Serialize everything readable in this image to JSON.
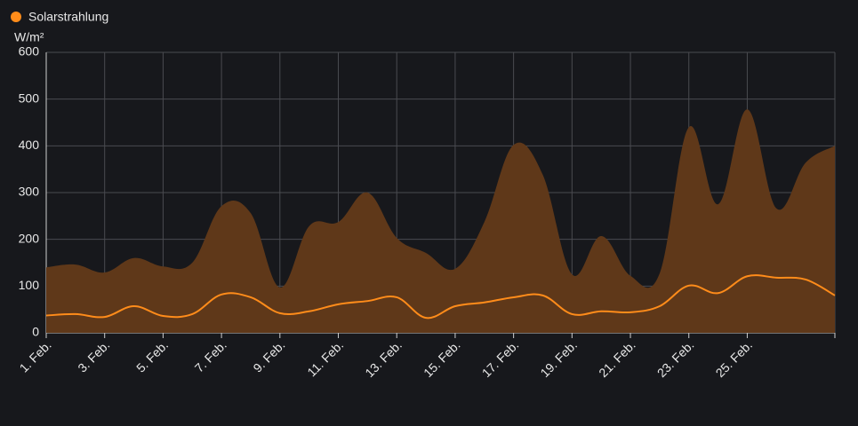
{
  "chart_data": {
    "type": "line",
    "y_label": "W/m²",
    "categories": [
      "1. Feb.",
      null,
      "3. Feb.",
      null,
      "5. Feb.",
      null,
      "7. Feb.",
      null,
      "9. Feb.",
      null,
      "11. Feb.",
      null,
      "13. Feb.",
      null,
      "15. Feb.",
      null,
      "17. Feb.",
      null,
      "19. Feb.",
      null,
      "21. Feb.",
      null,
      "23. Feb.",
      null,
      "25. Feb.",
      null,
      null,
      null
    ],
    "series": [
      {
        "kind": "area",
        "color": "#5f3819",
        "values": [
          140,
          146,
          129,
          160,
          142,
          150,
          271,
          256,
          97,
          228,
          237,
          300,
          203,
          171,
          137,
          237,
          402,
          338,
          125,
          207,
          122,
          127,
          440,
          275,
          478,
          266,
          364,
          400
        ]
      },
      {
        "name": "Solarstrahlung",
        "kind": "line",
        "color": "#ff8c1a",
        "values": [
          37,
          40,
          34,
          57,
          36,
          40,
          82,
          76,
          42,
          46,
          61,
          68,
          76,
          32,
          57,
          65,
          76,
          80,
          40,
          46,
          44,
          57,
          101,
          85,
          121,
          118,
          114,
          80
        ]
      }
    ],
    "ylim": [
      0,
      600
    ],
    "yticks": [
      0,
      100,
      200,
      300,
      400,
      500,
      600
    ],
    "grid": true
  }
}
